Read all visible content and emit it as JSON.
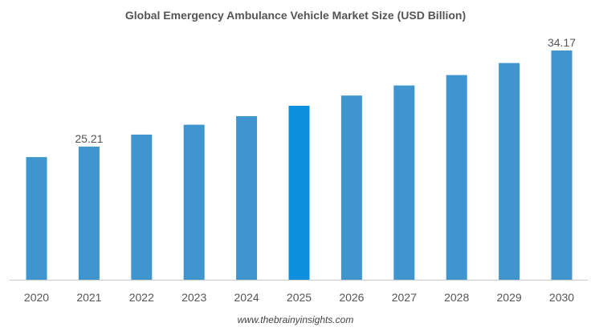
{
  "chart_data": {
    "type": "bar",
    "title": "Global Emergency Ambulance Vehicle Market Size (USD Billion)",
    "categories": [
      "2020",
      "2021",
      "2022",
      "2023",
      "2024",
      "2025",
      "2026",
      "2027",
      "2028",
      "2029",
      "2030"
    ],
    "values": [
      24.23,
      25.21,
      26.33,
      27.25,
      28.05,
      29.02,
      29.97,
      30.91,
      31.88,
      33.0,
      34.17
    ],
    "data_labels": {
      "2021": "25.21",
      "2030": "34.17"
    },
    "highlight_category": "2025",
    "ylim": [
      12.8,
      34.17
    ],
    "xlabel": "",
    "ylabel": "",
    "grid": false,
    "colors": {
      "bar": "#3f95cd",
      "highlight": "#0d8fe0",
      "axis": "#c8c8c8",
      "label": "#555555"
    }
  },
  "footer": "www.thebrainyinsights.com"
}
